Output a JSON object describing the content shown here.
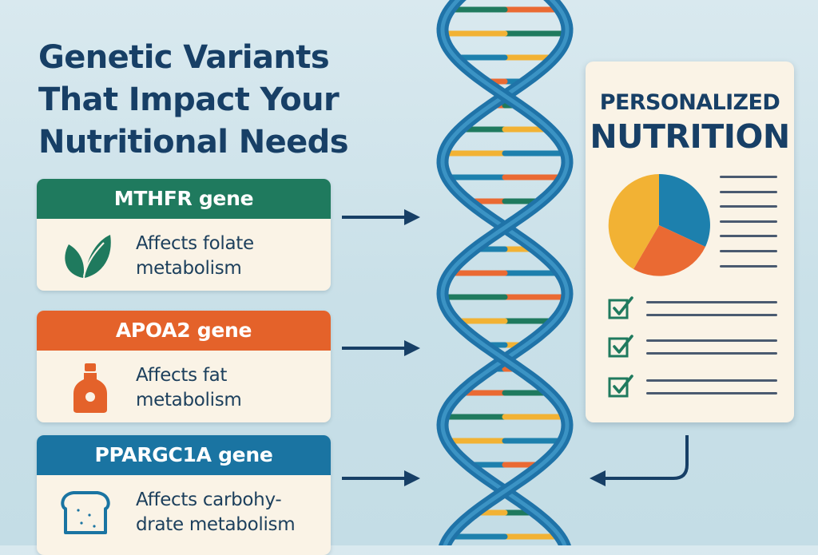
{
  "title": {
    "line1": "Genetic Variants",
    "line2": "That Impact Your",
    "line3": "Nutritional Needs"
  },
  "genes": [
    {
      "name": "MTHFR gene",
      "desc_line1": "Affects folate",
      "desc_line2": "metabolism",
      "color": "#1f7a5e",
      "icon": "leaf-icon"
    },
    {
      "name": "APOA2 gene",
      "desc_line1": "Affects fat",
      "desc_line2": "metabolism",
      "color": "#e4622a",
      "icon": "oil-bottle-icon"
    },
    {
      "name": "PPARGC1A gene",
      "desc_line1": "Affects carbohy-",
      "desc_line2": "drate metabolism",
      "color": "#1a74a2",
      "icon": "bread-icon"
    }
  ],
  "report": {
    "title_line1": "PERSONALIZED",
    "title_line2": "NUTRITION",
    "pie_colors": [
      "#f2b234",
      "#1d80ad",
      "#ea6a33"
    ],
    "check_icon": "checkbox-checked-icon"
  },
  "dna": {
    "strand_color": "#1f73a8",
    "rung_colors": [
      "#ea6a33",
      "#1f7a5e",
      "#f2b234",
      "#1d80ad"
    ]
  }
}
